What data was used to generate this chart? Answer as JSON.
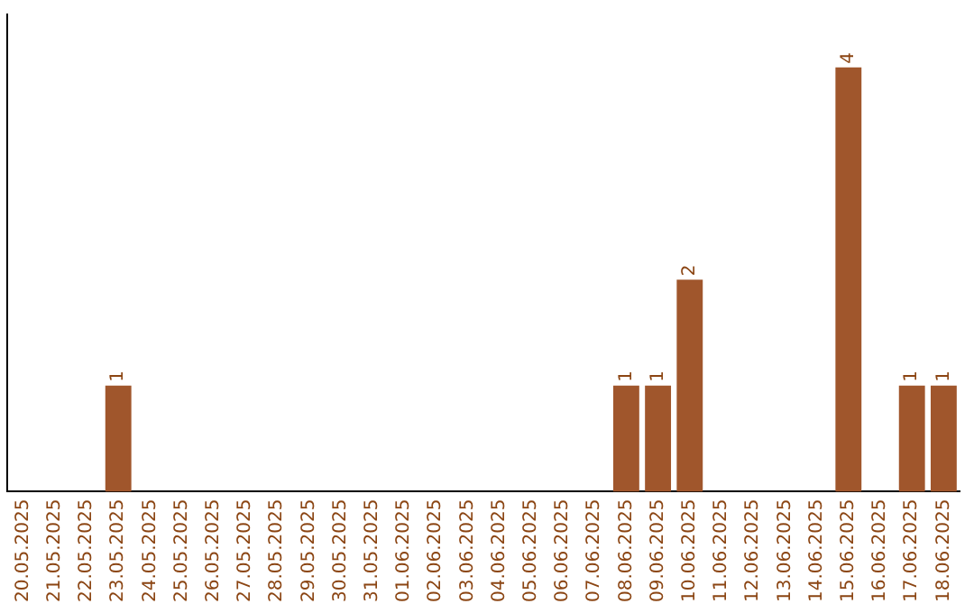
{
  "chart_data": {
    "type": "bar",
    "categories": [
      "20.05.2025",
      "21.05.2025",
      "22.05.2025",
      "23.05.2025",
      "24.05.2025",
      "25.05.2025",
      "26.05.2025",
      "27.05.2025",
      "28.05.2025",
      "29.05.2025",
      "30.05.2025",
      "31.05.2025",
      "01.06.2025",
      "02.06.2025",
      "03.06.2025",
      "04.06.2025",
      "05.06.2025",
      "06.06.2025",
      "07.06.2025",
      "08.06.2025",
      "09.06.2025",
      "10.06.2025",
      "11.06.2025",
      "12.06.2025",
      "13.06.2025",
      "14.06.2025",
      "15.06.2025",
      "16.06.2025",
      "17.06.2025",
      "18.06.2025"
    ],
    "values": [
      0,
      0,
      0,
      1,
      0,
      0,
      0,
      0,
      0,
      0,
      0,
      0,
      0,
      0,
      0,
      0,
      0,
      0,
      0,
      1,
      1,
      2,
      0,
      0,
      0,
      0,
      4,
      0,
      1,
      1
    ],
    "value_labels": [
      null,
      null,
      null,
      "1",
      null,
      null,
      null,
      null,
      null,
      null,
      null,
      null,
      null,
      null,
      null,
      null,
      null,
      null,
      null,
      "1",
      "1",
      "2",
      null,
      null,
      null,
      null,
      "4",
      null,
      "1",
      "1"
    ],
    "color": "#a0562c",
    "grid": false,
    "legend": false
  }
}
